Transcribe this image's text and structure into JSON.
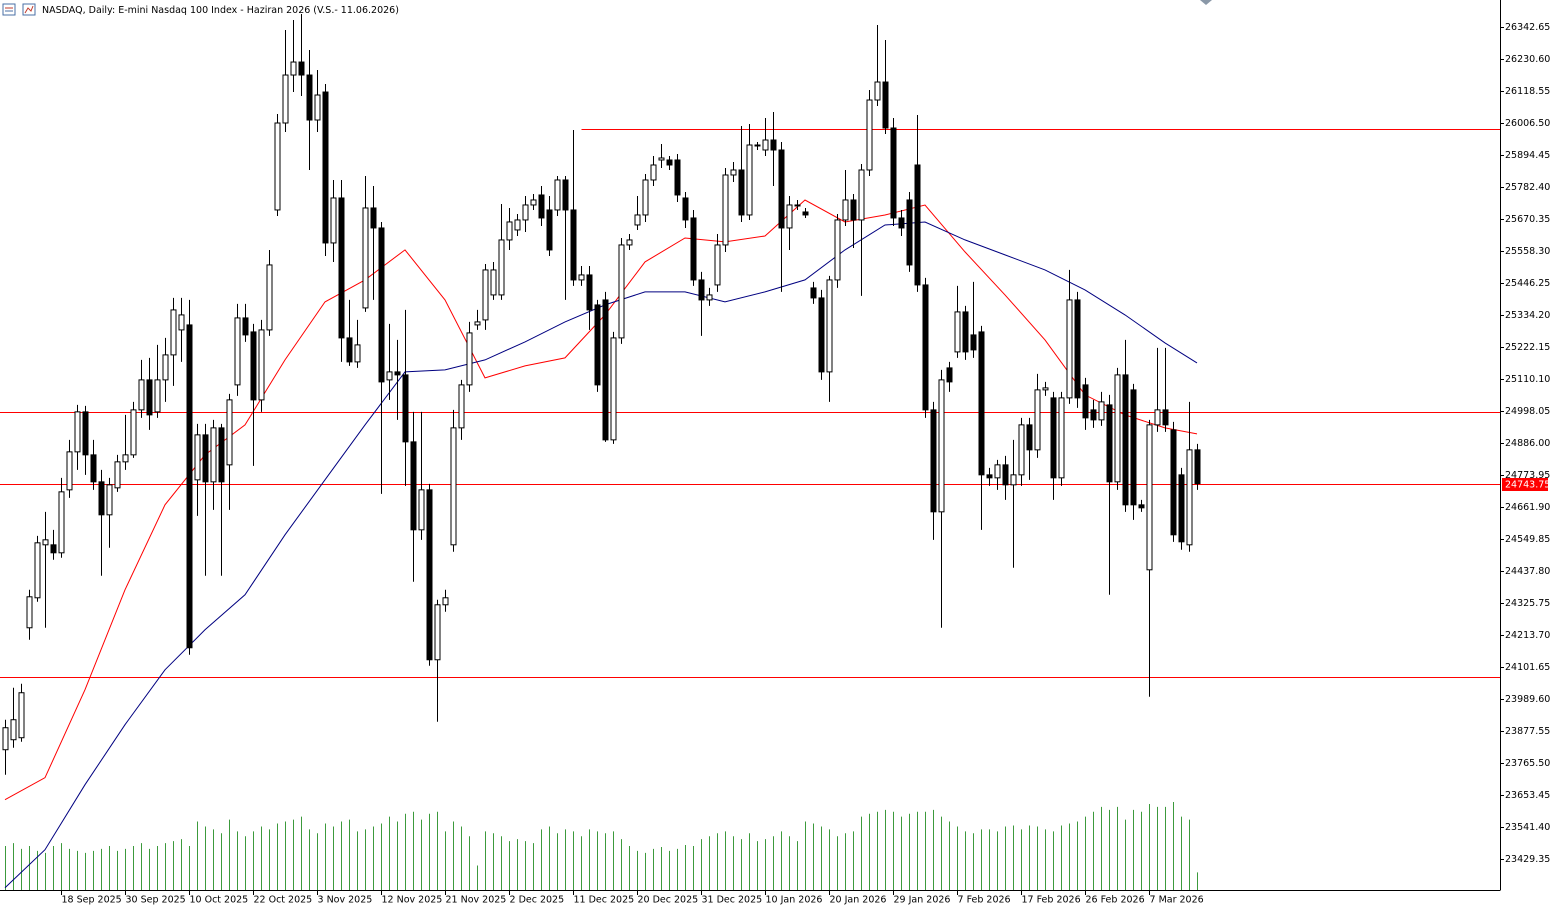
{
  "chart_data": {
    "type": "candlestick",
    "title": "NASDAQ, Daily:  E-mini Nasdaq 100 Index -  Haziran 2026 (V.S.- 11.06.2026)",
    "categories": [
      null,
      null,
      null,
      null,
      null,
      null,
      null,
      "18 Sep 2025",
      null,
      null,
      null,
      null,
      null,
      null,
      null,
      "30 Sep 2025",
      null,
      null,
      null,
      null,
      null,
      null,
      null,
      "10 Oct 2025",
      null,
      null,
      null,
      null,
      null,
      null,
      null,
      "22 Oct 2025",
      null,
      null,
      null,
      null,
      null,
      null,
      null,
      "3 Nov 2025",
      null,
      null,
      null,
      null,
      null,
      null,
      null,
      "12 Nov 2025",
      null,
      null,
      null,
      null,
      null,
      null,
      null,
      "21 Nov 2025",
      null,
      null,
      null,
      null,
      null,
      null,
      null,
      "2 Dec 2025",
      null,
      null,
      null,
      null,
      null,
      null,
      null,
      "11 Dec 2025",
      null,
      null,
      null,
      null,
      null,
      null,
      null,
      "20 Dec 2025",
      null,
      null,
      null,
      null,
      null,
      null,
      null,
      "31 Dec 2025",
      null,
      null,
      null,
      null,
      null,
      null,
      null,
      "10 Jan 2026",
      null,
      null,
      null,
      null,
      null,
      null,
      null,
      "20 Jan 2026",
      null,
      null,
      null,
      null,
      null,
      null,
      null,
      "29 Jan 2026",
      null,
      null,
      null,
      null,
      null,
      null,
      null,
      "7 Feb 2026",
      null,
      null,
      null,
      null,
      null,
      null,
      null,
      "17 Feb 2026",
      null,
      null,
      null,
      null,
      null,
      null,
      null,
      "26 Feb 2026",
      null,
      null,
      null,
      null,
      null,
      null,
      null,
      "7 Mar 2026",
      null,
      null,
      null,
      null,
      null,
      null
    ],
    "open": [
      23812,
      23847,
      23854,
      24239,
      24344,
      24529.5,
      24529.5,
      24501.5,
      24722,
      24855,
      24995,
      24844.5,
      24750,
      24634.5,
      24729,
      24820,
      24844.5,
      25002,
      25107,
      24995,
      25107,
      25194.5,
      25282,
      25299.5,
      24757,
      24914.5,
      24750,
      24939,
      24809.5,
      25089.5,
      25324,
      25275,
      25037,
      25282,
      25702,
      26006.5,
      26174.5,
      26220,
      26174.5,
      26017,
      26115,
      25586.5,
      25744,
      25254,
      25170,
      25359,
      25709,
      25639,
      25107,
      25135,
      25124.5,
      24890,
      24582,
      24722,
      24127,
      24319.5,
      24529.5,
      24939,
      25089.5,
      25299.5,
      25317,
      25404.5,
      25404.5,
      25597,
      25632,
      25667,
      25719.5,
      25754.5,
      25702,
      25702,
      25807,
      25702,
      25457,
      25474.5,
      25369.5,
      25387,
      24897,
      25254,
      25579.5,
      25649.5,
      25684.5,
      25807,
      25877,
      25877,
      25877,
      25744,
      25674,
      25457,
      25387,
      25439.5,
      25579.5,
      25824.5,
      25842,
      25684.5,
      25929.5,
      25912,
      25947,
      25912,
      25639,
      25719.5,
      25695,
      25429,
      25394,
      25135,
      25457,
      25667,
      25737,
      25667,
      25842,
      26087,
      26150,
      25989,
      25674,
      25737,
      25859.5,
      25439.5,
      25002,
      24645,
      25149,
      25205,
      25345,
      25264.5,
      25275,
      24774.5,
      24764,
      24809.5,
      24739.5,
      24774.5,
      24949.5,
      24862,
      25072,
      25044,
      24764,
      25044,
      25387,
      25089.5,
      25002,
      24967,
      25019.5,
      24750,
      25124.5,
      25072,
      24669.5,
      24442,
      24949.5,
      25002,
      24932,
      24774.5,
      24529.5,
      24862
    ],
    "high": [
      23917,
      24029,
      24043,
      24372,
      24561,
      24645,
      24582,
      24764,
      24897,
      25019.5,
      25016,
      24897,
      24792,
      24764,
      24844.5,
      24984.5,
      25030,
      25177,
      25184,
      25229.5,
      25254,
      25394,
      25394,
      25387,
      24953,
      24953,
      24967,
      24953,
      25058,
      25373,
      25373,
      25303,
      25317,
      25562,
      26038,
      26332,
      26367,
      26388,
      26262,
      26192,
      26143,
      25807,
      25807,
      25387,
      25317,
      25821,
      25786,
      25660,
      25303,
      25247,
      25352,
      24995,
      24995,
      24743,
      24337,
      24372,
      25002,
      25107,
      25310,
      25352,
      25513,
      25520,
      25723,
      25709,
      25688,
      25751,
      25758,
      25786,
      25751,
      25821,
      25821,
      25982,
      25506,
      25506,
      25387,
      25415,
      25275,
      25604,
      25618,
      25751,
      25828,
      25891,
      25933,
      25891,
      25898,
      25765,
      25702,
      25485,
      25429,
      25618,
      25849,
      25870,
      25996,
      26003,
      25940,
      26024,
      26045,
      25940,
      25751,
      25737,
      25709,
      25450,
      25422,
      25471,
      25688,
      25842,
      25758,
      25863,
      26122,
      26349.5,
      26297,
      26024,
      25702,
      25765,
      26034.5,
      25464,
      25030,
      25142,
      25170,
      25436,
      25366,
      25450,
      25296,
      24799,
      24827,
      24841,
      24897,
      24974,
      24974,
      25128,
      25100,
      25065,
      25065,
      25492,
      25415,
      25114,
      25037,
      25065,
      25054.5,
      25149,
      25247,
      25093,
      24687,
      24967,
      25219,
      25219,
      24960,
      24799,
      25030,
      24883
    ],
    "low": [
      23724.5,
      23819,
      23840,
      24197,
      24330,
      24239,
      24477,
      24484,
      24694,
      24792,
      24774.5,
      24722,
      24421,
      24519,
      24715,
      24792,
      24834,
      24974,
      24932,
      24974,
      25030,
      25086,
      25170,
      24144.5,
      24631,
      24421,
      24652,
      24421,
      24652,
      25051,
      25240,
      24806,
      24995,
      25261,
      25681,
      25975,
      26115,
      26101,
      25842,
      25975,
      25541,
      25520,
      25170,
      25156,
      25149,
      25345,
      25387,
      24708,
      25037,
      24967,
      24736,
      24400,
      24547,
      24106,
      23910,
      24295,
      24505,
      24897,
      25065,
      25282,
      25282,
      25387,
      25387,
      25562,
      25611,
      25625,
      25702,
      25646,
      25541,
      25681,
      25387,
      25436,
      25436,
      25282,
      25065,
      24890,
      24883,
      25233,
      25562,
      25632,
      25660,
      25786,
      25849,
      25842,
      25730,
      25639,
      25436,
      25261,
      25366,
      25415,
      25555,
      25800,
      25660,
      25667,
      25912,
      25891,
      25786,
      25415,
      25562,
      25702,
      25674,
      25373,
      25107,
      25030,
      25429,
      25646,
      25569,
      25401,
      25821,
      26066,
      25968,
      25646,
      25611,
      25485,
      25415,
      24974,
      24547,
      24239,
      25065,
      25184,
      25177,
      25184,
      24582,
      24736,
      24722,
      24687,
      24449,
      24736,
      24757,
      24834,
      25051,
      24687,
      24736,
      25023,
      25009,
      24932,
      24939,
      24946,
      24354.5,
      24722,
      24645,
      24617,
      24645,
      23997.5,
      24925,
      24925,
      24540,
      24512,
      24505,
      24722
    ],
    "close": [
      23889,
      23917,
      24011.5,
      24347.5,
      24536.5,
      24547,
      24501.5,
      24715,
      24855,
      24995,
      24844.5,
      24750,
      24634.5,
      24739.5,
      24820,
      24844.5,
      25002,
      25107,
      24984.5,
      25107,
      25194.5,
      25352,
      25334.5,
      24169,
      24914.5,
      24750,
      24939,
      24750,
      25037,
      25324,
      25264.5,
      25037,
      25282,
      25509.5,
      26006.5,
      26174.5,
      26220,
      26174.5,
      26017,
      26104.5,
      25586.5,
      25744,
      25254,
      25170,
      25229.5,
      25709,
      25639,
      25100,
      25135,
      25124.5,
      24890,
      24582,
      24722,
      24127,
      24319.5,
      24344,
      24939,
      25089.5,
      25271.5,
      25310,
      25492,
      25492,
      25597,
      25660,
      25667,
      25719.5,
      25737,
      25674,
      25562,
      25807,
      25702,
      25457,
      25474.5,
      25352,
      25089.5,
      24897,
      25254,
      25579.5,
      25597,
      25684.5,
      25807,
      25859.5,
      25884,
      25859.5,
      25754.5,
      25667,
      25457,
      25387,
      25404.5,
      25579.5,
      25824.5,
      25842,
      25684.5,
      25929.5,
      25929.5,
      25947,
      25912,
      25639,
      25719.5,
      25719.5,
      25684.5,
      25394,
      25135,
      25457,
      25667,
      25737,
      25667,
      25842,
      26087,
      26150,
      25989,
      25674,
      25639,
      25509.5,
      25439.5,
      25002,
      24645,
      25107,
      25100,
      25345,
      25205,
      25212,
      24774.5,
      24764,
      24809.5,
      24739.5,
      24774.5,
      24949.5,
      24862,
      25072,
      25079,
      24764,
      25044,
      25387,
      25044,
      24974,
      24967,
      25030,
      24750,
      25124.5,
      24669.5,
      24669.5,
      24659,
      24949.5,
      25002,
      24949.5,
      24564.5,
      24540,
      24862,
      24743.75
    ],
    "volume": [
      45,
      48,
      42,
      45,
      40,
      38,
      45,
      48,
      42,
      40,
      38,
      40,
      42,
      45,
      40,
      42,
      45,
      48,
      42,
      45,
      48,
      50,
      52,
      45,
      70,
      65,
      62,
      58,
      72,
      60,
      55,
      60,
      65,
      62,
      68,
      70,
      72,
      75,
      62,
      58,
      68,
      65,
      70,
      72,
      60,
      62,
      65,
      68,
      75,
      70,
      78,
      80,
      72,
      78,
      80,
      60,
      70,
      65,
      55,
      25,
      60,
      58,
      55,
      50,
      52,
      50,
      48,
      62,
      65,
      58,
      62,
      60,
      55,
      62,
      60,
      58,
      60,
      52,
      45,
      40,
      38,
      42,
      44,
      40,
      42,
      46,
      45,
      52,
      55,
      58,
      60,
      55,
      52,
      58,
      50,
      52,
      55,
      60,
      55,
      50,
      70,
      68,
      65,
      62,
      55,
      58,
      60,
      75,
      78,
      80,
      82,
      80,
      75,
      78,
      80,
      80,
      82,
      75,
      70,
      65,
      60,
      58,
      62,
      62,
      60,
      65,
      66,
      62,
      66,
      65,
      62,
      60,
      66,
      68,
      70,
      75,
      80,
      85,
      82,
      85,
      72,
      82,
      80,
      88,
      85,
      85,
      90,
      75,
      72,
      18
    ],
    "volume_color": "#3c9a3c",
    "up_color": "#ffffff",
    "down_color": "#000000",
    "overlays": [
      {
        "color": "#ff0000",
        "x": [
          0,
          5,
          10,
          15,
          20,
          25,
          30,
          35,
          40,
          45,
          50,
          55,
          60,
          65,
          70,
          75,
          80,
          85,
          90,
          95,
          100,
          105,
          110,
          115,
          120,
          125,
          130,
          135,
          140,
          145,
          149
        ],
        "values": [
          23637,
          23714,
          24022,
          24372,
          24669.5,
          24844.5,
          24949.5,
          25177,
          25380,
          25457,
          25562,
          25387,
          25114,
          25156,
          25184,
          25334.5,
          25520,
          25604,
          25590,
          25611,
          25737,
          25660,
          25684.5,
          25719.5,
          25555,
          25404.5,
          25247,
          25054.5,
          24984.5,
          24939,
          24918
        ]
      },
      {
        "color": "#000080",
        "x": [
          0,
          5,
          10,
          15,
          20,
          25,
          30,
          35,
          40,
          45,
          50,
          55,
          60,
          65,
          70,
          75,
          80,
          85,
          90,
          95,
          100,
          105,
          110,
          115,
          120,
          125,
          130,
          135,
          140,
          145,
          149
        ],
        "values": [
          23329,
          23462,
          23689.5,
          23899.5,
          24092,
          24232,
          24354.5,
          24564.5,
          24757,
          24949.5,
          25135,
          25142,
          25177,
          25240,
          25310,
          25369.5,
          25415,
          25415,
          25380,
          25415,
          25457,
          25562,
          25649.5,
          25660,
          25597,
          25544.5,
          25492,
          25422,
          25334.5,
          25236.5,
          25166.5
        ]
      }
    ],
    "hlines": [
      {
        "value": 25985,
        "x_start": 72,
        "color": "#ff0000"
      },
      {
        "value": 24995,
        "color": "#ff0000"
      },
      {
        "value": 24067.5,
        "color": "#ff0000"
      }
    ],
    "last_price": {
      "value": 24743.75,
      "label": "24743.75",
      "color": "#ff0000"
    },
    "xlim": [
      -0.625,
      186.875
    ],
    "ylim": [
      23320.8,
      26437.2
    ],
    "yticks": [
      26342.65,
      {
        "value": 26230.6,
        "label": "26230.60"
      },
      26118.55,
      {
        "value": 26006.5,
        "label": "26006.50"
      },
      25894.45,
      {
        "value": 25782.4,
        "label": "25782.40"
      },
      25670.35,
      {
        "value": 25558.3,
        "label": "25558.30"
      },
      25446.25,
      {
        "value": 25334.2,
        "label": "25334.20"
      },
      25222.15,
      {
        "value": 25110.1,
        "label": "25110.10"
      },
      24998.05,
      {
        "value": 24886,
        "label": "24886.00"
      },
      24773.95,
      {
        "value": 24661.9,
        "label": "24661.90"
      },
      24549.85,
      {
        "value": 24437.8,
        "label": "24437.80"
      },
      24325.75,
      {
        "value": 24213.7,
        "label": "24213.70"
      },
      24101.65,
      {
        "value": 23989.6,
        "label": "23989.60"
      },
      23877.55,
      {
        "value": 23765.5,
        "label": "23765.50"
      },
      23653.45,
      {
        "value": 23541.4,
        "label": "23541.40"
      },
      23429.35
    ]
  }
}
